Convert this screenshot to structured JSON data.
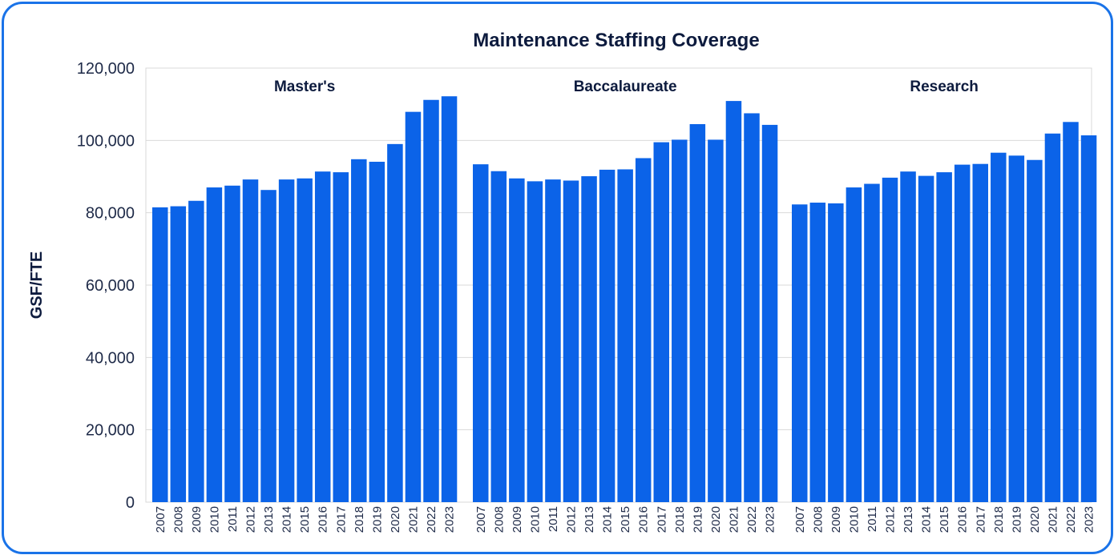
{
  "chart_data": {
    "type": "bar",
    "title": "Maintenance Staffing Coverage",
    "ylabel": "GSF/FTE",
    "xlabel": "",
    "ylim": [
      0,
      120000
    ],
    "yticks": [
      0,
      20000,
      40000,
      60000,
      80000,
      100000,
      120000
    ],
    "ytick_labels": [
      "0",
      "20,000",
      "40,000",
      "60,000",
      "80,000",
      "100,000",
      "120,000"
    ],
    "grid": true,
    "bar_color": "#0b63e8",
    "categories": [
      "2007",
      "2008",
      "2009",
      "2010",
      "2011",
      "2012",
      "2013",
      "2014",
      "2015",
      "2016",
      "2017",
      "2018",
      "2019",
      "2020",
      "2021",
      "2022",
      "2023"
    ],
    "panels": [
      {
        "name": "Master's",
        "values": [
          81500,
          81800,
          83300,
          87000,
          87500,
          89200,
          86300,
          89200,
          89500,
          91400,
          91200,
          94800,
          94100,
          99000,
          107900,
          111200,
          112200
        ]
      },
      {
        "name": "Baccalaureate",
        "values": [
          93400,
          91500,
          89500,
          88700,
          89200,
          88900,
          90100,
          91900,
          92000,
          95100,
          99500,
          100200,
          104500,
          100200,
          110900,
          107500,
          104300
        ]
      },
      {
        "name": "Research",
        "values": [
          82300,
          82800,
          82600,
          87000,
          88000,
          89700,
          91400,
          90200,
          91200,
          93300,
          93500,
          96600,
          95800,
          94600,
          101900,
          105100,
          101400
        ]
      }
    ]
  }
}
